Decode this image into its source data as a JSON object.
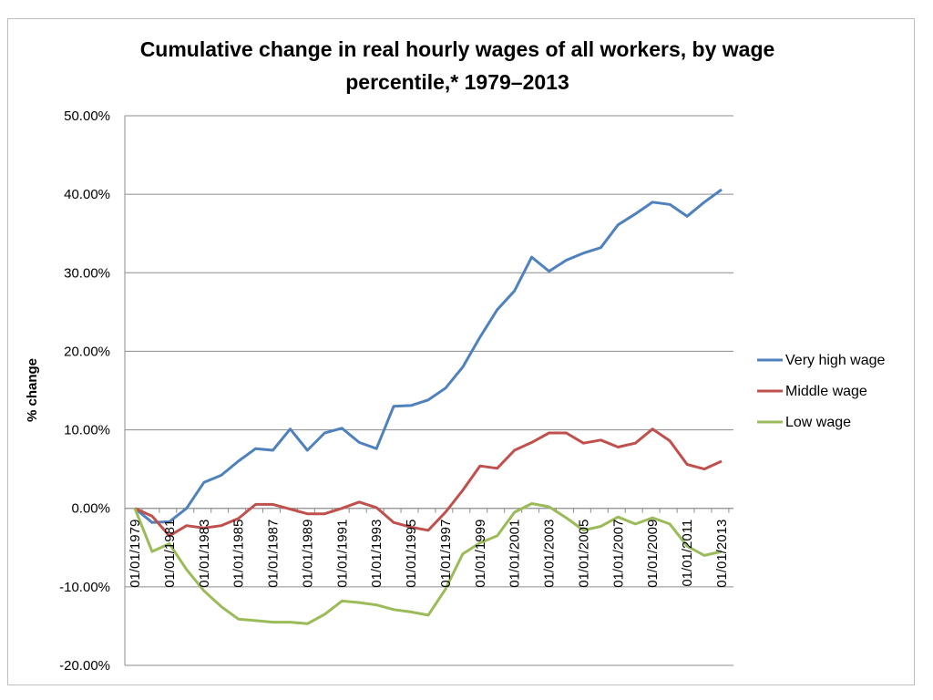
{
  "chart_data": {
    "type": "line",
    "title_lines": [
      "Cumulative change in real hourly wages of all workers, by wage",
      "percentile,* 1979–2013"
    ],
    "xlabel": "",
    "ylabel": "% change",
    "ylim": [
      -0.2,
      0.5
    ],
    "yticks": [
      -0.2,
      -0.1,
      0.0,
      0.1,
      0.2,
      0.3,
      0.4,
      0.5
    ],
    "ytick_labels": [
      "-20.00%",
      "-10.00%",
      "0.00%",
      "10.00%",
      "20.00%",
      "30.00%",
      "40.00%",
      "50.00%"
    ],
    "x": [
      "01/01/1979",
      "01/01/1980",
      "01/01/1981",
      "01/01/1982",
      "01/01/1983",
      "01/01/1984",
      "01/01/1985",
      "01/01/1986",
      "01/01/1987",
      "01/01/1988",
      "01/01/1989",
      "01/01/1990",
      "01/01/1991",
      "01/01/1992",
      "01/01/1993",
      "01/01/1994",
      "01/01/1995",
      "01/01/1996",
      "01/01/1997",
      "01/01/1998",
      "01/01/1999",
      "01/01/2000",
      "01/01/2001",
      "01/01/2002",
      "01/01/2003",
      "01/01/2004",
      "01/01/2005",
      "01/01/2006",
      "01/01/2007",
      "01/01/2008",
      "01/01/2009",
      "01/01/2010",
      "01/01/2011",
      "01/01/2012",
      "01/01/2013"
    ],
    "xtick_labels": [
      "01/01/1979",
      "01/01/1981",
      "01/01/1983",
      "01/01/1985",
      "01/01/1987",
      "01/01/1989",
      "01/01/1991",
      "01/01/1993",
      "01/01/1995",
      "01/01/1997",
      "01/01/1999",
      "01/01/2001",
      "01/01/2003",
      "01/01/2005",
      "01/01/2007",
      "01/01/2009",
      "01/01/2011",
      "01/01/2013"
    ],
    "grid": "horizontal",
    "legend_position": "right",
    "series": [
      {
        "name": "Very high wage",
        "color": "#4f81bd",
        "values": [
          0.0,
          -0.018,
          -0.017,
          0.0,
          0.033,
          0.042,
          0.06,
          0.076,
          0.074,
          0.101,
          0.074,
          0.096,
          0.102,
          0.084,
          0.076,
          0.13,
          0.131,
          0.138,
          0.153,
          0.18,
          0.218,
          0.253,
          0.277,
          0.32,
          0.302,
          0.316,
          0.325,
          0.332,
          0.361,
          0.375,
          0.39,
          0.387,
          0.372,
          0.39,
          0.406
        ]
      },
      {
        "name": "Middle wage",
        "color": "#c0504d",
        "values": [
          0.0,
          -0.01,
          -0.035,
          -0.022,
          -0.025,
          -0.022,
          -0.013,
          0.005,
          0.005,
          -0.001,
          -0.007,
          -0.007,
          0.0,
          0.008,
          0.001,
          -0.018,
          -0.024,
          -0.028,
          -0.005,
          0.023,
          0.054,
          0.051,
          0.074,
          0.084,
          0.096,
          0.096,
          0.083,
          0.087,
          0.078,
          0.083,
          0.101,
          0.086,
          0.056,
          0.05,
          0.06
        ]
      },
      {
        "name": "Low wage",
        "color": "#9bbb59",
        "values": [
          0.0,
          -0.055,
          -0.045,
          -0.078,
          -0.105,
          -0.125,
          -0.141,
          -0.143,
          -0.145,
          -0.145,
          -0.147,
          -0.135,
          -0.118,
          -0.12,
          -0.123,
          -0.129,
          -0.132,
          -0.136,
          -0.103,
          -0.058,
          -0.044,
          -0.035,
          -0.005,
          0.006,
          0.002,
          -0.012,
          -0.028,
          -0.023,
          -0.011,
          -0.02,
          -0.012,
          -0.02,
          -0.048,
          -0.06,
          -0.055
        ]
      }
    ]
  }
}
